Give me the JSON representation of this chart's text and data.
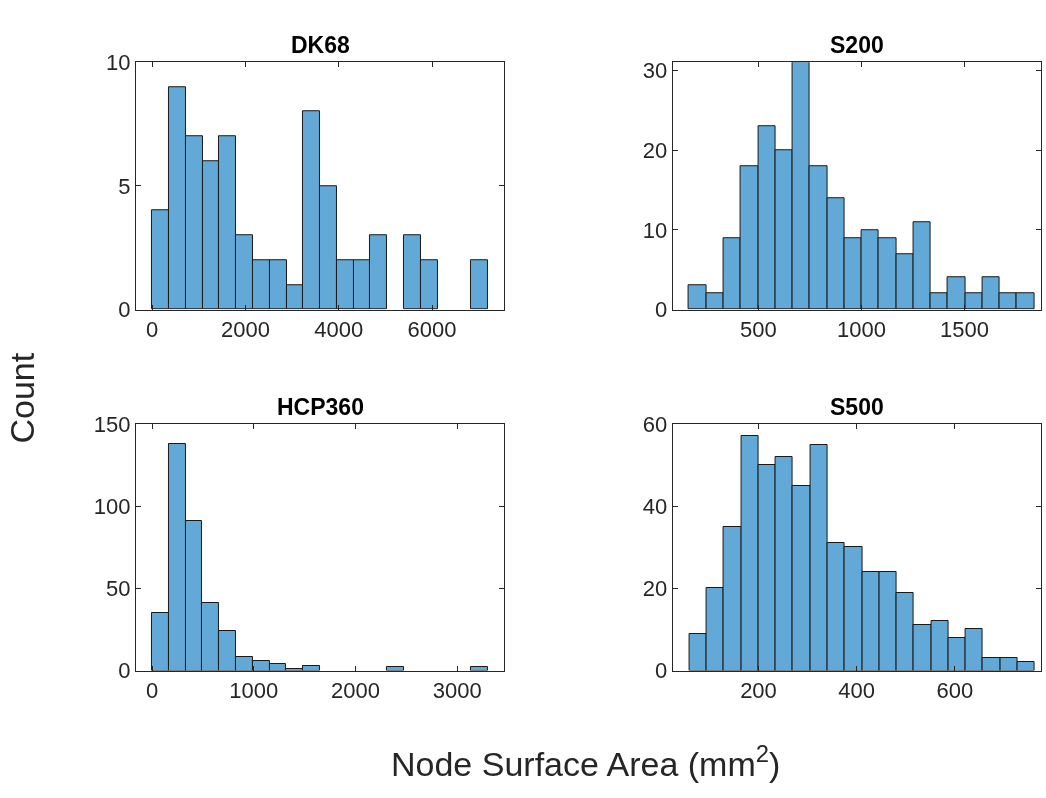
{
  "chart_data": [
    {
      "type": "histogram",
      "title": "DK68",
      "ylabel": "Count",
      "color": "#62a9d7",
      "bins": [
        0,
        360,
        720,
        1080,
        1440,
        1800,
        2160,
        2520,
        2880,
        3240,
        3600,
        3960,
        4320,
        4680,
        5040,
        5400,
        5760,
        6120,
        6480,
        6840,
        7200
      ],
      "values": [
        4,
        9,
        7,
        6,
        7,
        3,
        2,
        2,
        1,
        8,
        5,
        2,
        2,
        3,
        0,
        3,
        2,
        0,
        0,
        2
      ],
      "xlim": [
        -345,
        7545
      ],
      "xticks": [
        0,
        2000,
        4000,
        6000
      ],
      "ylim": [
        0,
        10
      ],
      "yticks": [
        0,
        5,
        10
      ]
    },
    {
      "type": "histogram",
      "title": "S200",
      "color": "#62a9d7",
      "bins": [
        164,
        247.7,
        331.4,
        415.1,
        498.8,
        582.5,
        666.2,
        749.9,
        833.6,
        917.3,
        1001,
        1084.7,
        1168.4,
        1252.1,
        1335.8,
        1419.5,
        1503.2,
        1586.9,
        1670.6,
        1754.3,
        1838
      ],
      "values": [
        3,
        2,
        9,
        18,
        23,
        20,
        31,
        18,
        14,
        9,
        10,
        9,
        7,
        11,
        2,
        4,
        2,
        4,
        2,
        2
      ],
      "xlim": [
        84,
        1870
      ],
      "xticks": [
        500,
        1000,
        1500
      ],
      "ylim": [
        0,
        31
      ],
      "yticks": [
        0,
        10,
        20,
        30
      ]
    },
    {
      "type": "histogram",
      "title": "HCP360",
      "xlabel": "Node Surface Area (mm$^{2}$)",
      "color": "#62a9d7",
      "bins": [
        0,
        165,
        330,
        495,
        660,
        825,
        990,
        1155,
        1320,
        1485,
        1650,
        1815,
        1980,
        2145,
        2310,
        2475,
        2640,
        2805,
        2970,
        3135,
        3300
      ],
      "values": [
        35,
        138,
        91,
        41,
        24,
        8,
        6,
        4,
        1,
        3,
        0,
        0,
        0,
        0,
        2,
        0,
        0,
        0,
        0,
        2
      ],
      "xlim": [
        -158,
        3462
      ],
      "xticks": [
        0,
        1000,
        2000,
        3000
      ],
      "ylim": [
        0,
        150
      ],
      "yticks": [
        0,
        50,
        100,
        150
      ]
    },
    {
      "type": "histogram",
      "title": "S500",
      "color": "#62a9d7",
      "bins": [
        59,
        94.2,
        129.4,
        164.6,
        199.8,
        235,
        270.2,
        305.4,
        340.6,
        375.8,
        411,
        446.2,
        481.4,
        516.6,
        551.8,
        587,
        622.2,
        657.4,
        692.6,
        727.8,
        763
      ],
      "values": [
        9,
        20,
        35,
        57,
        50,
        52,
        45,
        55,
        31,
        30,
        24,
        24,
        19,
        11,
        12,
        8,
        10,
        3,
        3,
        2
      ],
      "xlim": [
        25,
        775
      ],
      "xticks": [
        200,
        400,
        600
      ],
      "ylim": [
        0,
        60
      ],
      "yticks": [
        0,
        20,
        40,
        60
      ]
    }
  ]
}
